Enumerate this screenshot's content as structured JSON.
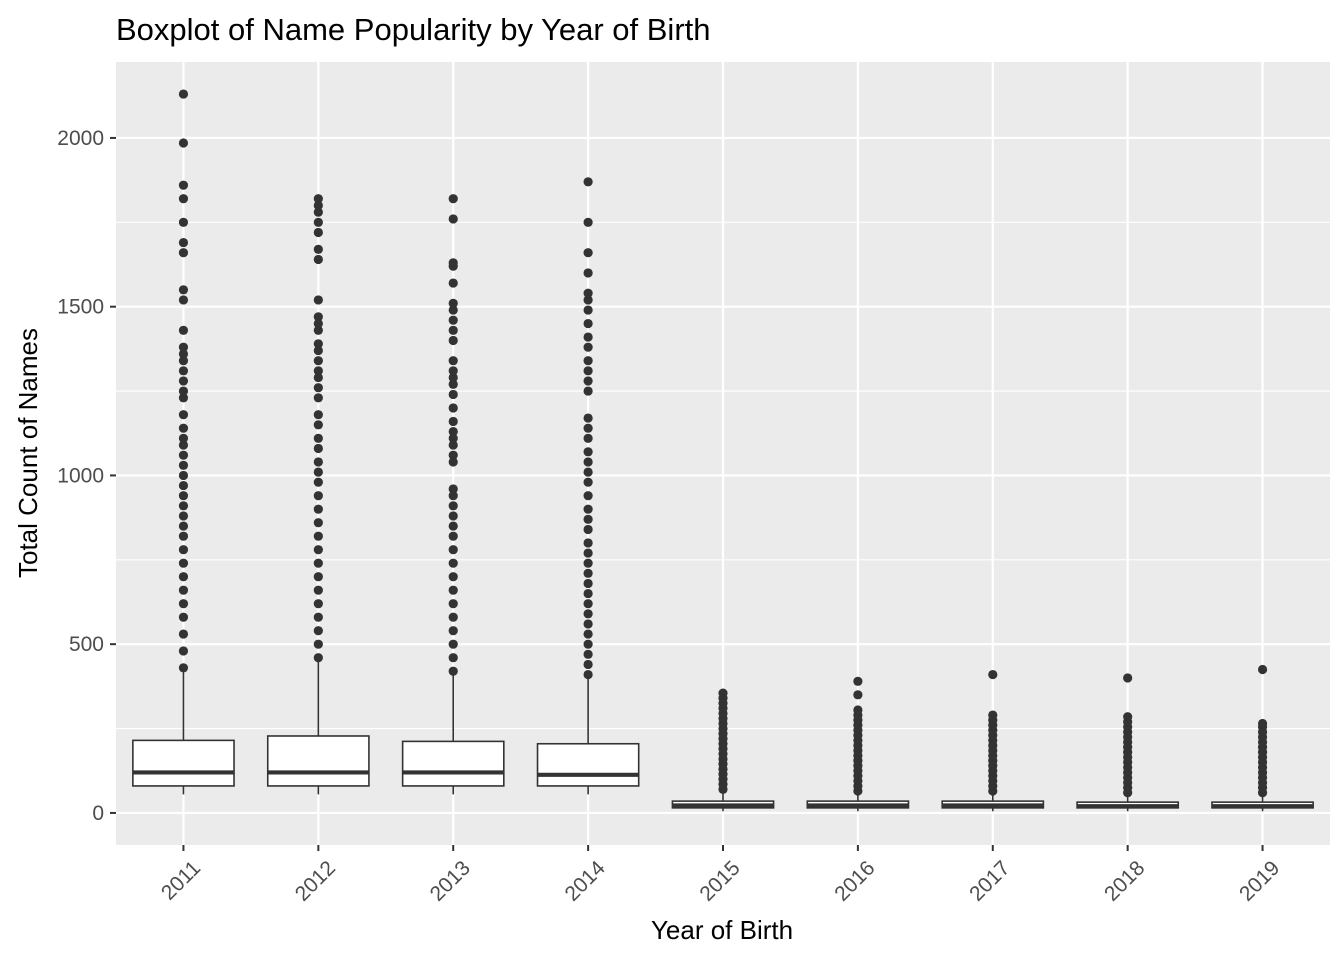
{
  "chart_data": {
    "type": "boxplot",
    "title": "Boxplot of Name Popularity by Year of Birth",
    "xlabel": "Year of Birth",
    "ylabel": "Total Count of Names",
    "ylim": [
      -95,
      2225
    ],
    "yticks": [
      0,
      500,
      1000,
      1500,
      2000
    ],
    "grid": true,
    "legend": "none",
    "categories": [
      "2011",
      "2012",
      "2013",
      "2014",
      "2015",
      "2016",
      "2017",
      "2018",
      "2019"
    ],
    "boxes": [
      {
        "category": "2011",
        "min": 55,
        "q1": 80,
        "median": 120,
        "q3": 215,
        "max": 420,
        "outliers": [
          430,
          480,
          530,
          580,
          620,
          660,
          700,
          740,
          780,
          820,
          850,
          880,
          910,
          940,
          970,
          1000,
          1030,
          1060,
          1090,
          1110,
          1140,
          1180,
          1230,
          1250,
          1280,
          1310,
          1340,
          1360,
          1380,
          1430,
          1520,
          1550,
          1660,
          1690,
          1750,
          1820,
          1860,
          1985,
          2130
        ]
      },
      {
        "category": "2012",
        "min": 55,
        "q1": 80,
        "median": 120,
        "q3": 228,
        "max": 450,
        "outliers": [
          460,
          500,
          540,
          580,
          620,
          660,
          700,
          740,
          780,
          820,
          860,
          900,
          940,
          980,
          1010,
          1040,
          1080,
          1110,
          1150,
          1180,
          1230,
          1260,
          1290,
          1310,
          1340,
          1370,
          1390,
          1430,
          1450,
          1470,
          1520,
          1640,
          1670,
          1720,
          1750,
          1780,
          1800,
          1820
        ]
      },
      {
        "category": "2013",
        "min": 55,
        "q1": 80,
        "median": 120,
        "q3": 212,
        "max": 410,
        "outliers": [
          420,
          460,
          500,
          540,
          580,
          620,
          660,
          700,
          740,
          780,
          820,
          850,
          880,
          910,
          940,
          960,
          1040,
          1060,
          1090,
          1110,
          1130,
          1160,
          1200,
          1240,
          1270,
          1290,
          1310,
          1340,
          1400,
          1430,
          1460,
          1490,
          1510,
          1570,
          1620,
          1630,
          1760,
          1820
        ]
      },
      {
        "category": "2014",
        "min": 55,
        "q1": 80,
        "median": 113,
        "q3": 205,
        "max": 400,
        "outliers": [
          410,
          440,
          470,
          500,
          530,
          560,
          590,
          620,
          650,
          680,
          710,
          740,
          770,
          800,
          840,
          870,
          900,
          940,
          980,
          1010,
          1040,
          1070,
          1110,
          1140,
          1170,
          1250,
          1280,
          1310,
          1340,
          1380,
          1410,
          1450,
          1490,
          1520,
          1540,
          1600,
          1660,
          1750,
          1870
        ]
      },
      {
        "category": "2015",
        "min": 5,
        "q1": 15,
        "median": 22,
        "q3": 35,
        "max": 65,
        "outliers": [
          70,
          85,
          100,
          115,
          130,
          145,
          160,
          175,
          190,
          205,
          220,
          235,
          250,
          265,
          280,
          295,
          310,
          325,
          340,
          355
        ]
      },
      {
        "category": "2016",
        "min": 5,
        "q1": 15,
        "median": 22,
        "q3": 35,
        "max": 60,
        "outliers": [
          65,
          80,
          95,
          110,
          125,
          140,
          155,
          170,
          185,
          200,
          215,
          230,
          245,
          260,
          275,
          290,
          305,
          350,
          390
        ]
      },
      {
        "category": "2017",
        "min": 5,
        "q1": 15,
        "median": 22,
        "q3": 35,
        "max": 60,
        "outliers": [
          65,
          80,
          95,
          110,
          125,
          140,
          155,
          170,
          185,
          200,
          215,
          230,
          245,
          260,
          275,
          290,
          410
        ]
      },
      {
        "category": "2018",
        "min": 5,
        "q1": 15,
        "median": 20,
        "q3": 32,
        "max": 55,
        "outliers": [
          60,
          75,
          90,
          105,
          120,
          135,
          150,
          165,
          180,
          195,
          210,
          225,
          240,
          255,
          270,
          285,
          400
        ]
      },
      {
        "category": "2019",
        "min": 5,
        "q1": 15,
        "median": 20,
        "q3": 32,
        "max": 55,
        "outliers": [
          60,
          75,
          90,
          105,
          120,
          135,
          150,
          165,
          180,
          195,
          210,
          225,
          240,
          255,
          265,
          425
        ]
      }
    ],
    "colors": {
      "panel": "#ebebeb",
      "grid": "#ffffff",
      "box_fill": "#ffffff",
      "box_stroke": "#333333",
      "outlier": "#333333",
      "tick_text": "#4d4d4d",
      "title_text": "#000000"
    }
  }
}
